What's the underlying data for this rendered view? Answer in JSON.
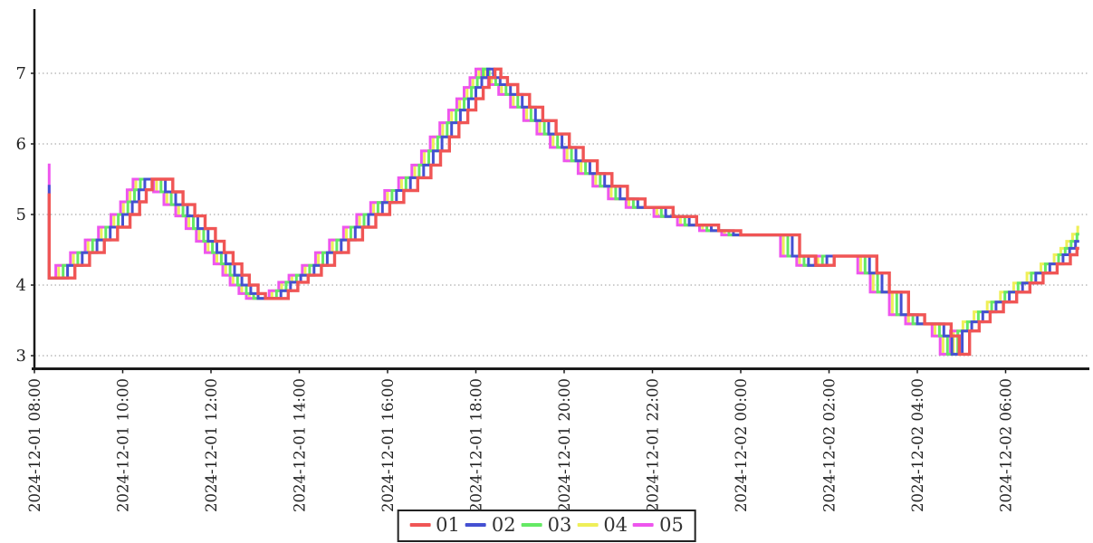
{
  "chart_data": {
    "type": "line",
    "subtype": "step-post",
    "title": "",
    "xlabel": "",
    "ylabel": "",
    "grid": "horizontal-dotted",
    "grid_color": "#999999",
    "axis_color": "#1a1a1a",
    "background": "#ffffff",
    "legend_position": "bottom-center",
    "y_ticks": [
      3,
      4,
      5,
      6,
      7
    ],
    "ylim": [
      2.55,
      7.9
    ],
    "x_tick_labels": [
      "2024-12-01 08:00",
      "2024-12-01 10:00",
      "2024-12-01 12:00",
      "2024-12-01 14:00",
      "2024-12-01 16:00",
      "2024-12-01 18:00",
      "2024-12-01 20:00",
      "2024-12-01 22:00",
      "2024-12-02 00:00",
      "2024-12-02 02:00",
      "2024-12-02 04:00",
      "2024-12-02 06:00"
    ],
    "x_tick_minutes": [
      0,
      120,
      240,
      360,
      480,
      600,
      720,
      840,
      960,
      1080,
      1200,
      1320
    ],
    "time_start_label": "2024-12-01 08:00",
    "base_step_points": [
      [
        20,
        4.1
      ],
      [
        55,
        4.28
      ],
      [
        75,
        4.46
      ],
      [
        95,
        4.64
      ],
      [
        113,
        4.82
      ],
      [
        130,
        5.0
      ],
      [
        143,
        5.18
      ],
      [
        152,
        5.35
      ],
      [
        160,
        5.5
      ],
      [
        188,
        5.32
      ],
      [
        202,
        5.14
      ],
      [
        218,
        4.98
      ],
      [
        232,
        4.8
      ],
      [
        246,
        4.62
      ],
      [
        258,
        4.46
      ],
      [
        270,
        4.3
      ],
      [
        282,
        4.14
      ],
      [
        292,
        4.0
      ],
      [
        304,
        3.88
      ],
      [
        314,
        3.81
      ],
      [
        345,
        3.92
      ],
      [
        358,
        4.04
      ],
      [
        372,
        4.14
      ],
      [
        390,
        4.28
      ],
      [
        408,
        4.46
      ],
      [
        427,
        4.64
      ],
      [
        446,
        4.82
      ],
      [
        464,
        5.0
      ],
      [
        483,
        5.17
      ],
      [
        502,
        5.34
      ],
      [
        521,
        5.52
      ],
      [
        539,
        5.7
      ],
      [
        552,
        5.9
      ],
      [
        564,
        6.1
      ],
      [
        577,
        6.3
      ],
      [
        589,
        6.48
      ],
      [
        600,
        6.64
      ],
      [
        610,
        6.8
      ],
      [
        618,
        6.94
      ],
      [
        626,
        7.06
      ],
      [
        634,
        6.94
      ],
      [
        643,
        6.84
      ],
      [
        657,
        6.7
      ],
      [
        673,
        6.52
      ],
      [
        691,
        6.33
      ],
      [
        709,
        6.14
      ],
      [
        727,
        5.95
      ],
      [
        746,
        5.76
      ],
      [
        765,
        5.58
      ],
      [
        785,
        5.4
      ],
      [
        806,
        5.22
      ],
      [
        830,
        5.1
      ],
      [
        868,
        4.97
      ],
      [
        900,
        4.85
      ],
      [
        930,
        4.77
      ],
      [
        960,
        4.71
      ],
      [
        1040,
        4.41
      ],
      [
        1062,
        4.28
      ],
      [
        1087,
        4.41
      ],
      [
        1145,
        4.17
      ],
      [
        1162,
        3.9
      ],
      [
        1188,
        3.58
      ],
      [
        1210,
        3.45
      ],
      [
        1246,
        3.28
      ],
      [
        1257,
        3.02
      ],
      [
        1271,
        3.35
      ],
      [
        1284,
        3.48
      ],
      [
        1299,
        3.62
      ],
      [
        1317,
        3.76
      ],
      [
        1335,
        3.9
      ],
      [
        1353,
        4.03
      ],
      [
        1371,
        4.17
      ],
      [
        1390,
        4.3
      ],
      [
        1408,
        4.43
      ],
      [
        1417,
        4.52
      ],
      [
        1425,
        4.62
      ],
      [
        1433,
        4.72
      ],
      [
        1440,
        4.82
      ]
    ],
    "series": [
      {
        "name": "01",
        "color": "#f05555",
        "offset_min": 0,
        "start_min": 20,
        "start_value": 5.3,
        "end_min": 1420,
        "width": 3.4
      },
      {
        "name": "02",
        "color": "#4450d2",
        "offset_min": -10,
        "start_min": 20,
        "start_value": 5.42,
        "end_min": 1420,
        "width": 3
      },
      {
        "name": "03",
        "color": "#64e964",
        "offset_min": -16,
        "start_min": 20,
        "start_value": 4.35,
        "end_min": 1420,
        "width": 3
      },
      {
        "name": "04",
        "color": "#efef58",
        "offset_min": -22,
        "start_min": 20,
        "start_value": 4.22,
        "end_min": 1420,
        "width": 3
      },
      {
        "name": "05",
        "color": "#ee55ee",
        "offset_min": -26,
        "start_min": 20,
        "start_value": 5.72,
        "end_min": 1255,
        "width": 3
      }
    ],
    "draw_order": [
      "04",
      "05",
      "03",
      "02",
      "01"
    ],
    "legend_labels": [
      "01",
      "02",
      "03",
      "04",
      "05"
    ]
  }
}
